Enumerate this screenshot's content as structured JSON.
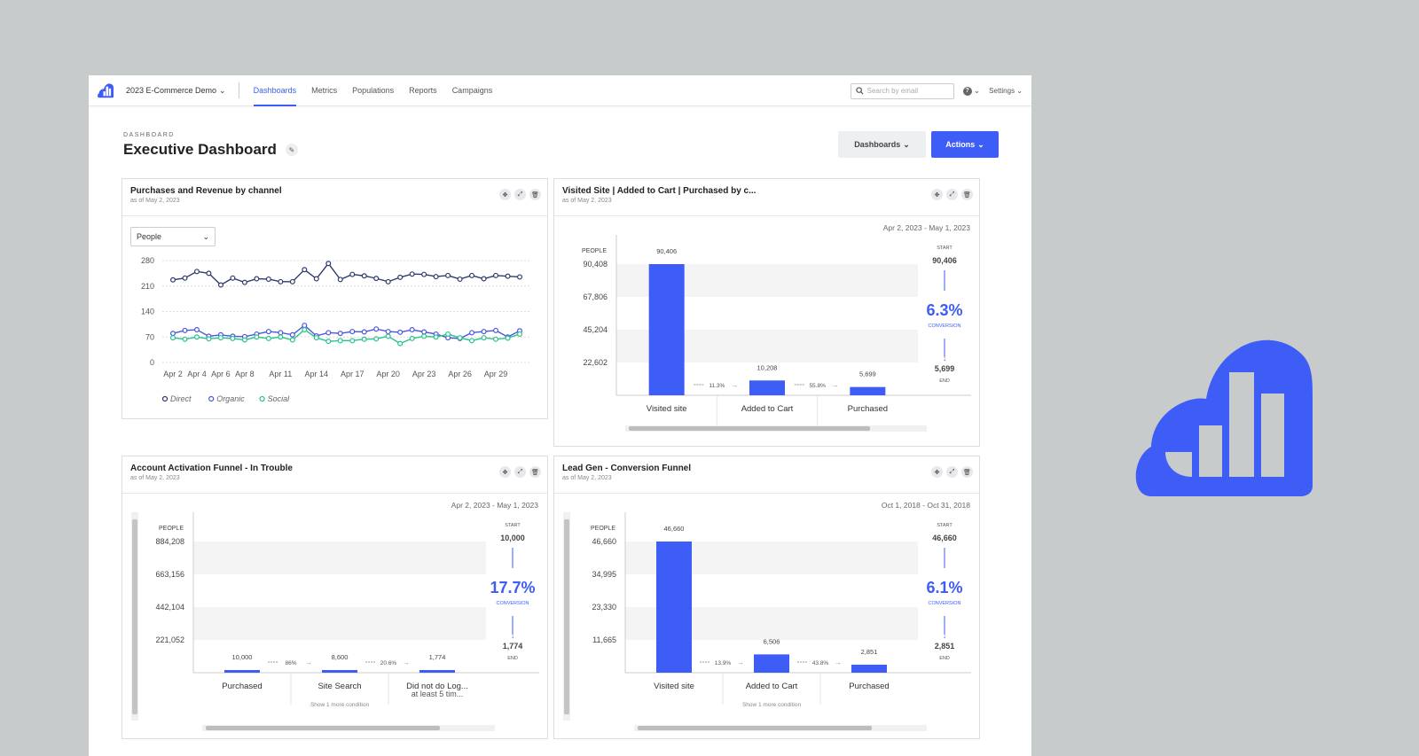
{
  "topbar": {
    "workspace": "2023 E-Commerce Demo",
    "nav": [
      {
        "label": "Dashboards",
        "active": true
      },
      {
        "label": "Metrics",
        "active": false
      },
      {
        "label": "Populations",
        "active": false
      },
      {
        "label": "Reports",
        "active": false
      },
      {
        "label": "Campaigns",
        "active": false
      }
    ],
    "search_placeholder": "Search by email",
    "settings_label": "Settings"
  },
  "header": {
    "eyebrow": "DASHBOARD",
    "title": "Executive Dashboard",
    "dashboards_button": "Dashboards",
    "actions_button": "Actions"
  },
  "accent_color": "#3e5cf6",
  "cards": {
    "c1": {
      "title": "Purchases and Revenue by channel",
      "subtitle": "as of May 2, 2023",
      "select_value": "People"
    },
    "c2": {
      "title": "Visited Site | Added to Cart | Purchased by c...",
      "subtitle": "as of May 2, 2023",
      "daterange": "Apr 2, 2023 - May 1, 2023",
      "side": {
        "start_label": "START",
        "start": "90,406",
        "conversion": "6.3%",
        "conversion_label": "CONVERSION",
        "end": "5,699",
        "end_label": "END"
      }
    },
    "c3": {
      "title": "Account Activation Funnel - In Trouble",
      "subtitle": "as of May 2, 2023",
      "daterange": "Apr 2, 2023 - May 1, 2023",
      "side": {
        "start_label": "START",
        "start": "10,000",
        "conversion": "17.7%",
        "conversion_label": "CONVERSION",
        "end": "1,774",
        "end_label": "END"
      }
    },
    "c4": {
      "title": "Lead Gen - Conversion Funnel",
      "subtitle": "as of May 2, 2023",
      "daterange": "Oct 1, 2018 - Oct 31, 2018",
      "side": {
        "start_label": "START",
        "start": "46,660",
        "conversion": "6.1%",
        "conversion_label": "CONVERSION",
        "end": "2,851",
        "end_label": "END"
      }
    }
  },
  "chart_data": [
    {
      "type": "line",
      "x": [
        "Apr 2",
        "Apr 3",
        "Apr 4",
        "Apr 5",
        "Apr 6",
        "Apr 7",
        "Apr 8",
        "Apr 9",
        "Apr 10",
        "Apr 11",
        "Apr 12",
        "Apr 13",
        "Apr 14",
        "Apr 15",
        "Apr 16",
        "Apr 17",
        "Apr 18",
        "Apr 19",
        "Apr 20",
        "Apr 21",
        "Apr 22",
        "Apr 23",
        "Apr 24",
        "Apr 25",
        "Apr 26",
        "Apr 27",
        "Apr 28",
        "Apr 29",
        "Apr 30",
        "May 1"
      ],
      "xticks": [
        "Apr 2",
        "Apr 4",
        "Apr 6",
        "Apr 8",
        "Apr 11",
        "Apr 14",
        "Apr 17",
        "Apr 20",
        "Apr 23",
        "Apr 26",
        "Apr 29"
      ],
      "yticks": [
        0,
        70,
        140,
        210,
        280
      ],
      "ylim": [
        0,
        280
      ],
      "series": [
        {
          "name": "Direct",
          "color": "#2f3a6b",
          "values": [
            227,
            232,
            250,
            245,
            213,
            232,
            220,
            230,
            229,
            222,
            222,
            255,
            230,
            272,
            228,
            242,
            238,
            231,
            222,
            234,
            243,
            242,
            236,
            239,
            229,
            239,
            230,
            239,
            237,
            235
          ]
        },
        {
          "name": "Organic",
          "color": "#4a55e0",
          "values": [
            80,
            88,
            90,
            72,
            76,
            72,
            71,
            78,
            85,
            82,
            76,
            102,
            73,
            82,
            80,
            85,
            84,
            92,
            85,
            83,
            90,
            84,
            78,
            68,
            66,
            82,
            85,
            88,
            70,
            87
          ]
        },
        {
          "name": "Social",
          "color": "#27c38a",
          "values": [
            68,
            64,
            70,
            65,
            68,
            66,
            62,
            70,
            66,
            70,
            62,
            90,
            68,
            58,
            60,
            60,
            64,
            65,
            72,
            52,
            66,
            72,
            70,
            78,
            68,
            60,
            68,
            64,
            67,
            78
          ]
        }
      ],
      "grid": true,
      "legend": "bottom-left"
    },
    {
      "type": "bar",
      "categories": [
        "Visited site",
        "Added to Cart",
        "Purchased"
      ],
      "values": [
        90406,
        10208,
        5699
      ],
      "value_labels": [
        "90,406",
        "10,208",
        "5,699"
      ],
      "step_rates": [
        "11.3%",
        "55.8%"
      ],
      "ylabel": "PEOPLE",
      "yticks": [
        "22,602",
        "45,204",
        "67,806",
        "90,408"
      ],
      "ylim": [
        0,
        90408
      ]
    },
    {
      "type": "bar",
      "categories": [
        "Purchased",
        "Site Search",
        "Did not do Log..."
      ],
      "category_sub": [
        "",
        "Show 1 more condition",
        "at least 5 tim..."
      ],
      "values": [
        10000,
        8600,
        1774
      ],
      "value_labels": [
        "10,000",
        "8,600",
        "1,774"
      ],
      "step_rates": [
        "86%",
        "20.6%"
      ],
      "ylabel": "PEOPLE",
      "yticks": [
        "221,052",
        "442,104",
        "663,156",
        "884,208"
      ],
      "ylim": [
        0,
        884208
      ]
    },
    {
      "type": "bar",
      "categories": [
        "Visited site",
        "Added to Cart",
        "Purchased"
      ],
      "category_sub": [
        "",
        "Show 1 more condition",
        ""
      ],
      "values": [
        46660,
        6506,
        2851
      ],
      "value_labels": [
        "46,660",
        "6,506",
        "2,851"
      ],
      "step_rates": [
        "13.9%",
        "43.8%"
      ],
      "ylabel": "PEOPLE",
      "yticks": [
        "11,665",
        "23,330",
        "34,995",
        "46,660"
      ],
      "ylim": [
        0,
        46660
      ]
    }
  ]
}
